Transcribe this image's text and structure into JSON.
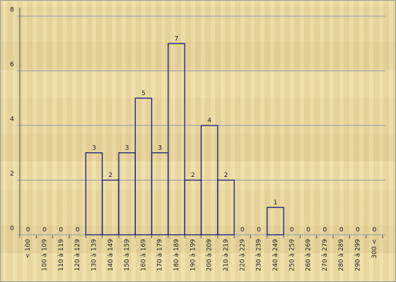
{
  "chart_data": {
    "type": "bar",
    "categories": [
      "< 100",
      "100 à 109",
      "110 à 119",
      "120 à 129",
      "130 à 139",
      "140 à 149",
      "150 à 159",
      "160 à 169",
      "170 à 179",
      "180 à 189",
      "190 à 199",
      "200 à 209",
      "210 à 219",
      "220 à 229",
      "230 à 239",
      "240 à 249",
      "250 à 259",
      "260 à 269",
      "270 à 279",
      "280 à 289",
      "290 à 299",
      "300 <"
    ],
    "values": [
      0,
      0,
      0,
      0,
      3,
      2,
      3,
      5,
      3,
      7,
      2,
      4,
      2,
      0,
      0,
      1,
      0,
      0,
      0,
      0,
      0,
      0
    ],
    "color": "#1a1a80",
    "ylim": [
      0,
      8
    ],
    "yticks": [
      0,
      2,
      4,
      6,
      8
    ],
    "grid": true
  }
}
